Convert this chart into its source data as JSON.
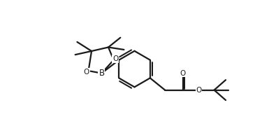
{
  "bg_color": "#ffffff",
  "line_color": "#1a1a1a",
  "line_width": 1.6,
  "font_size": 7.5,
  "figure_size": [
    3.85,
    1.8
  ],
  "dpi": 100,
  "xlim": [
    0,
    11
  ],
  "ylim": [
    0,
    5.2
  ]
}
